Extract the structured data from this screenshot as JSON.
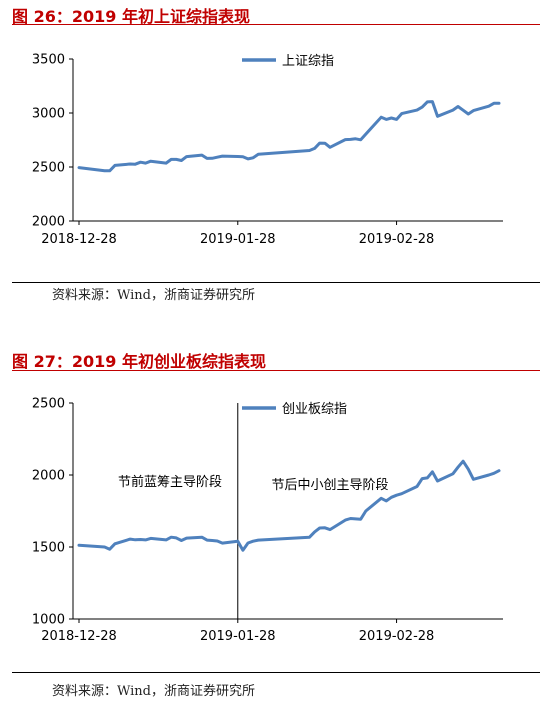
{
  "figures": [
    {
      "title": "图 26：2019 年初上证综指表现",
      "source": "资料来源：Wind，浙商证券研究所"
    },
    {
      "title": "图 27：2019 年初创业板综指表现",
      "source": "资料来源：Wind，浙商证券研究所"
    }
  ],
  "chart_data": [
    {
      "type": "line",
      "title": "",
      "x_tick_labels": [
        "2018-12-28",
        "2019-01-28",
        "2019-02-28"
      ],
      "y_tick_labels": [
        "2000",
        "2500",
        "3000",
        "3500"
      ],
      "ylim": [
        2000,
        3500
      ],
      "grid": false,
      "legend": "top-right",
      "series": [
        {
          "name": "上证综指",
          "color": "#4f81bd",
          "x": [
            "2018-12-28",
            "2019-01-02",
            "2019-01-03",
            "2019-01-04",
            "2019-01-07",
            "2019-01-08",
            "2019-01-09",
            "2019-01-10",
            "2019-01-11",
            "2019-01-14",
            "2019-01-15",
            "2019-01-16",
            "2019-01-17",
            "2019-01-18",
            "2019-01-21",
            "2019-01-22",
            "2019-01-23",
            "2019-01-24",
            "2019-01-25",
            "2019-01-28",
            "2019-01-29",
            "2019-01-30",
            "2019-01-31",
            "2019-02-01",
            "2019-02-11",
            "2019-02-12",
            "2019-02-13",
            "2019-02-14",
            "2019-02-15",
            "2019-02-18",
            "2019-02-19",
            "2019-02-20",
            "2019-02-21",
            "2019-02-22",
            "2019-02-25",
            "2019-02-26",
            "2019-02-27",
            "2019-02-28",
            "2019-03-01",
            "2019-03-04",
            "2019-03-05",
            "2019-03-06",
            "2019-03-07",
            "2019-03-08",
            "2019-03-11",
            "2019-03-12",
            "2019-03-13",
            "2019-03-14",
            "2019-03-15",
            "2019-03-18",
            "2019-03-19",
            "2019-03-20"
          ],
          "values": [
            2494,
            2465,
            2465,
            2515,
            2528,
            2526,
            2544,
            2536,
            2554,
            2536,
            2570,
            2570,
            2560,
            2596,
            2610,
            2580,
            2581,
            2591,
            2601,
            2597,
            2594,
            2575,
            2585,
            2618,
            2653,
            2672,
            2721,
            2720,
            2682,
            2754,
            2756,
            2761,
            2752,
            2805,
            2961,
            2941,
            2954,
            2941,
            2994,
            3027,
            3055,
            3103,
            3106,
            2969,
            3027,
            3060,
            3026,
            2991,
            3022,
            3063,
            3090,
            3091
          ]
        }
      ]
    },
    {
      "type": "line",
      "title": "",
      "x_tick_labels": [
        "2018-12-28",
        "2019-01-28",
        "2019-02-28"
      ],
      "y_tick_labels": [
        "1000",
        "1500",
        "2000",
        "2500"
      ],
      "ylim": [
        1000,
        2500
      ],
      "grid": false,
      "legend": "top-right",
      "annotations": [
        "节前蓝筹主导阶段",
        "节后中小创主导阶段"
      ],
      "divider_x": "2019-01-28",
      "series": [
        {
          "name": "创业板综指",
          "color": "#4f81bd",
          "x": [
            "2018-12-28",
            "2019-01-02",
            "2019-01-03",
            "2019-01-04",
            "2019-01-07",
            "2019-01-08",
            "2019-01-09",
            "2019-01-10",
            "2019-01-11",
            "2019-01-14",
            "2019-01-15",
            "2019-01-16",
            "2019-01-17",
            "2019-01-18",
            "2019-01-21",
            "2019-01-22",
            "2019-01-23",
            "2019-01-24",
            "2019-01-25",
            "2019-01-28",
            "2019-01-29",
            "2019-01-30",
            "2019-01-31",
            "2019-02-01",
            "2019-02-11",
            "2019-02-12",
            "2019-02-13",
            "2019-02-14",
            "2019-02-15",
            "2019-02-18",
            "2019-02-19",
            "2019-02-20",
            "2019-02-21",
            "2019-02-22",
            "2019-02-25",
            "2019-02-26",
            "2019-02-27",
            "2019-02-28",
            "2019-03-01",
            "2019-03-04",
            "2019-03-05",
            "2019-03-06",
            "2019-03-07",
            "2019-03-08",
            "2019-03-11",
            "2019-03-12",
            "2019-03-13",
            "2019-03-14",
            "2019-03-15",
            "2019-03-18",
            "2019-03-19",
            "2019-03-20"
          ],
          "values": [
            1512,
            1500,
            1485,
            1522,
            1555,
            1550,
            1552,
            1549,
            1560,
            1549,
            1568,
            1563,
            1545,
            1562,
            1568,
            1548,
            1545,
            1542,
            1527,
            1540,
            1478,
            1528,
            1540,
            1548,
            1568,
            1605,
            1632,
            1633,
            1621,
            1687,
            1698,
            1695,
            1693,
            1750,
            1838,
            1820,
            1845,
            1860,
            1870,
            1920,
            1975,
            1980,
            2022,
            1958,
            2008,
            2054,
            2096,
            2040,
            1970,
            2000,
            2012,
            2030
          ]
        }
      ]
    }
  ]
}
